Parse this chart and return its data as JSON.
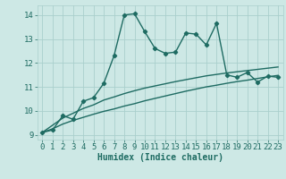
{
  "title": "",
  "xlabel": "Humidex (Indice chaleur)",
  "background_color": "#cde8e5",
  "grid_color": "#aacfcc",
  "line_color": "#1e6b62",
  "x_data": [
    0,
    1,
    2,
    3,
    4,
    5,
    6,
    7,
    8,
    9,
    10,
    11,
    12,
    13,
    14,
    15,
    16,
    17,
    18,
    19,
    20,
    21,
    22,
    23
  ],
  "y_main": [
    9.1,
    9.2,
    9.8,
    9.65,
    10.4,
    10.55,
    11.15,
    12.3,
    14.0,
    14.05,
    13.3,
    12.6,
    12.4,
    12.45,
    13.25,
    13.2,
    12.75,
    13.65,
    11.5,
    11.4,
    11.6,
    11.2,
    11.45,
    11.4
  ],
  "y_line1": [
    9.1,
    9.4,
    9.7,
    9.9,
    10.1,
    10.25,
    10.45,
    10.58,
    10.72,
    10.84,
    10.95,
    11.04,
    11.13,
    11.22,
    11.3,
    11.38,
    11.46,
    11.52,
    11.58,
    11.63,
    11.68,
    11.73,
    11.78,
    11.83
  ],
  "y_line2": [
    9.1,
    9.25,
    9.45,
    9.6,
    9.73,
    9.86,
    9.98,
    10.08,
    10.2,
    10.3,
    10.42,
    10.52,
    10.62,
    10.72,
    10.82,
    10.91,
    11.0,
    11.07,
    11.15,
    11.22,
    11.28,
    11.35,
    11.42,
    11.48
  ],
  "ylim": [
    8.8,
    14.4
  ],
  "xlim": [
    -0.5,
    23.5
  ],
  "yticks": [
    9,
    10,
    11,
    12,
    13,
    14
  ],
  "xticks": [
    0,
    1,
    2,
    3,
    4,
    5,
    6,
    7,
    8,
    9,
    10,
    11,
    12,
    13,
    14,
    15,
    16,
    17,
    18,
    19,
    20,
    21,
    22,
    23
  ],
  "marker": "D",
  "marker_size": 2.2,
  "line_width": 1.0,
  "font_color": "#1e6b62",
  "xlabel_fontsize": 7,
  "tick_fontsize": 6.5
}
